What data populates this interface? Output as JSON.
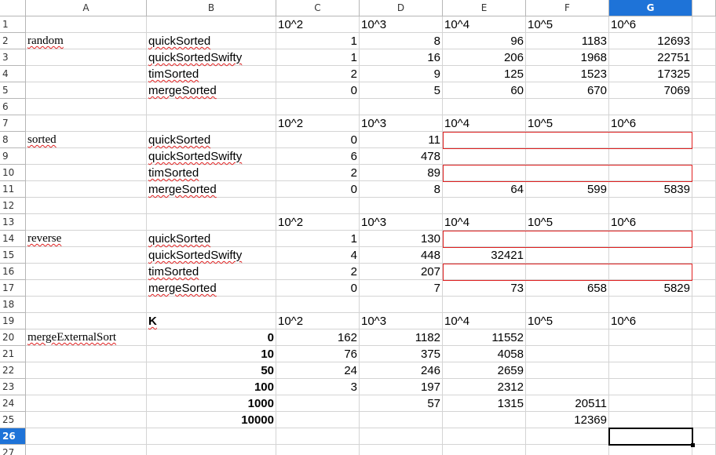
{
  "columns": [
    "A",
    "B",
    "C",
    "D",
    "E",
    "F",
    "G"
  ],
  "selected_column": "G",
  "selected_row": "26",
  "row_numbers": [
    "1",
    "2",
    "3",
    "4",
    "5",
    "6",
    "7",
    "8",
    "9",
    "10",
    "11",
    "12",
    "13",
    "14",
    "15",
    "16",
    "17",
    "18",
    "19",
    "20",
    "21",
    "22",
    "23",
    "24",
    "25",
    "26",
    "27"
  ],
  "cells": {
    "C1": "10^2",
    "D1": "10^3",
    "E1": "10^4",
    "F1": "10^5",
    "G1": "10^6",
    "A2": "random",
    "B2": "quickSorted",
    "C2": "1",
    "D2": "8",
    "E2": "96",
    "F2": "1183",
    "G2": "12693",
    "B3": "quickSortedSwifty",
    "C3": "1",
    "D3": "16",
    "E3": "206",
    "F3": "1968",
    "G3": "22751",
    "B4": "timSorted",
    "C4": "2",
    "D4": "9",
    "E4": "125",
    "F4": "1523",
    "G4": "17325",
    "B5": "mergeSorted",
    "C5": "0",
    "D5": "5",
    "E5": "60",
    "F5": "670",
    "G5": "7069",
    "C7": "10^2",
    "D7": "10^3",
    "E7": "10^4",
    "F7": "10^5",
    "G7": "10^6",
    "A8": "sorted",
    "B8": "quickSorted",
    "C8": "0",
    "D8": "11",
    "B9": "quickSortedSwifty",
    "C9": "6",
    "D9": "478",
    "B10": "timSorted",
    "C10": "2",
    "D10": "89",
    "B11": "mergeSorted",
    "C11": "0",
    "D11": "8",
    "E11": "64",
    "F11": "599",
    "G11": "5839",
    "C13": "10^2",
    "D13": "10^3",
    "E13": "10^4",
    "F13": "10^5",
    "G13": "10^6",
    "A14": "reverse",
    "B14": "quickSorted",
    "C14": "1",
    "D14": "130",
    "B15": "quickSortedSwifty",
    "C15": "4",
    "D15": "448",
    "E15": "32421",
    "B16": "timSorted",
    "C16": "2",
    "D16": "207",
    "B17": "mergeSorted",
    "C17": "0",
    "D17": "7",
    "E17": "73",
    "F17": "658",
    "G17": "5829",
    "B19": "K",
    "C19": "10^2",
    "D19": "10^3",
    "E19": "10^4",
    "F19": "10^5",
    "G19": "10^6",
    "A20": "mergeExternalSort",
    "B20": "0",
    "C20": "162",
    "D20": "1182",
    "E20": "11552",
    "B21": "10",
    "C21": "76",
    "D21": "375",
    "E21": "4058",
    "B22": "50",
    "C22": "24",
    "D22": "246",
    "E22": "2659",
    "B23": "100",
    "C23": "3",
    "D23": "197",
    "E23": "2312",
    "B24": "1000",
    "D24": "57",
    "E24": "1315",
    "F24": "20511",
    "B25": "10000",
    "F25": "12369"
  },
  "styles": {
    "accent_header": "#1e73d8",
    "highlight_border": "#e02020",
    "spellcheck_underline": "#e02020"
  }
}
